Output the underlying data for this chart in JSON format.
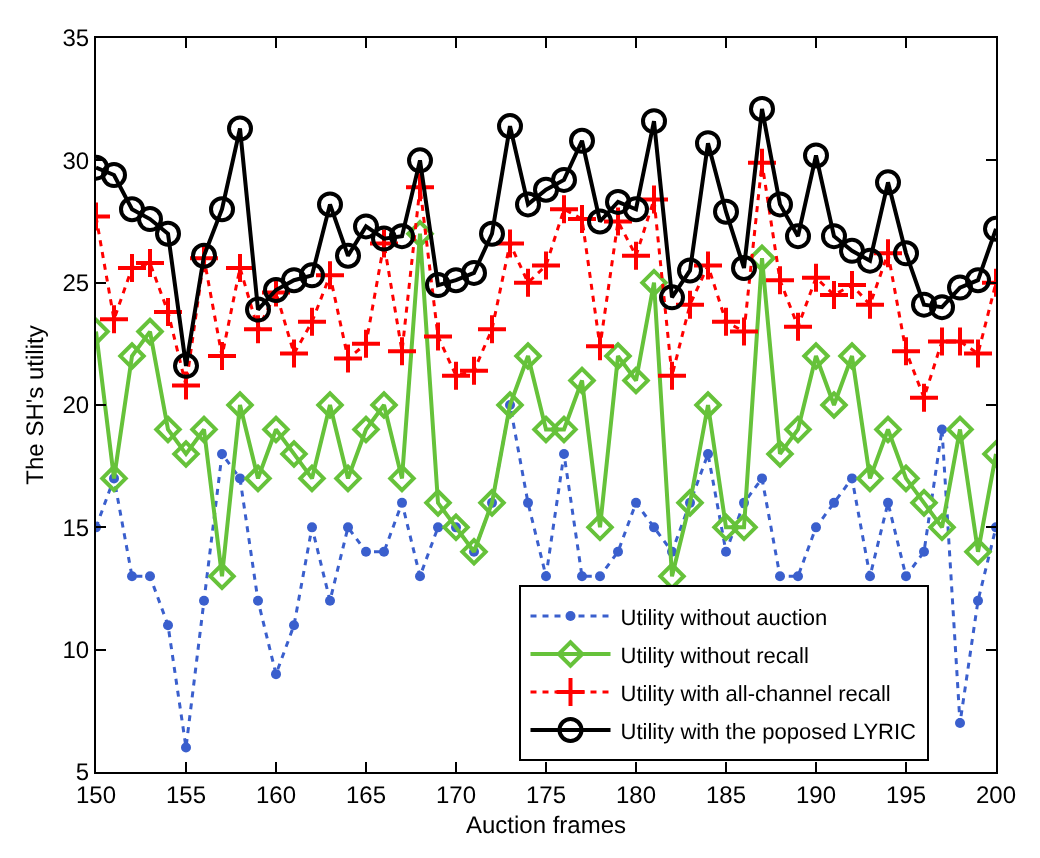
{
  "chart_data": {
    "type": "line",
    "xlabel": "Auction frames",
    "ylabel": "The SH's utility",
    "x": [
      150,
      151,
      152,
      153,
      154,
      155,
      156,
      157,
      158,
      159,
      160,
      161,
      162,
      163,
      164,
      165,
      166,
      167,
      168,
      169,
      170,
      171,
      172,
      173,
      174,
      175,
      176,
      177,
      178,
      179,
      180,
      181,
      182,
      183,
      184,
      185,
      186,
      187,
      188,
      189,
      190,
      191,
      192,
      193,
      194,
      195,
      196,
      197,
      198,
      199,
      200
    ],
    "xlim": [
      150,
      200
    ],
    "xticks": [
      150,
      155,
      160,
      165,
      170,
      175,
      180,
      185,
      190,
      195,
      200
    ],
    "ylim": [
      5,
      35
    ],
    "yticks": [
      5,
      10,
      15,
      20,
      25,
      30,
      35
    ],
    "grid": false,
    "legend": "bottom right",
    "series": [
      {
        "name": "Utility without auction",
        "color": "#3a5fcd",
        "marker": "circle",
        "line_style": "dotted",
        "values": [
          15,
          17,
          13,
          13,
          11,
          6,
          12,
          18,
          17,
          12,
          9,
          11,
          15,
          12,
          15,
          14,
          14,
          16,
          13,
          15,
          15,
          14,
          16,
          20,
          16,
          13,
          18,
          13,
          13,
          14,
          16,
          15,
          14,
          16,
          18,
          14,
          16,
          17,
          13,
          13,
          15,
          16,
          17,
          13,
          16,
          13,
          14,
          19,
          7,
          12,
          15
        ]
      },
      {
        "name": "Utility without recall",
        "color": "#66c23a",
        "marker": "diamond",
        "line_style": "solid",
        "values": [
          23,
          17,
          22,
          23,
          19,
          18,
          19,
          13,
          20,
          17,
          19,
          18,
          17,
          20,
          17,
          19,
          20,
          17,
          27,
          16,
          15,
          14,
          16,
          20,
          22,
          19,
          19,
          21,
          15,
          22,
          21,
          25,
          13,
          16,
          20,
          15,
          15,
          26,
          18,
          19,
          22,
          20,
          22,
          17,
          19,
          17,
          16,
          15,
          19,
          14,
          18
        ]
      },
      {
        "name": "Utility with all-channel recall",
        "color": "#ff0000",
        "marker": "cross",
        "line_style": "dotted",
        "values": [
          27.7,
          23.5,
          25.6,
          25.8,
          23.8,
          20.8,
          26.0,
          22.0,
          25.6,
          23.1,
          24.6,
          22.1,
          23.4,
          25.3,
          21.9,
          22.5,
          26.6,
          22.2,
          28.9,
          22.8,
          21.2,
          21.4,
          23.1,
          26.6,
          25.0,
          25.7,
          28.0,
          27.6,
          22.4,
          27.5,
          26.1,
          28.4,
          21.2,
          24.1,
          25.7,
          23.4,
          23.0,
          29.9,
          25.1,
          23.2,
          25.2,
          24.5,
          24.9,
          24.1,
          26.2,
          22.2,
          20.3,
          22.6,
          22.6,
          22.1,
          25.0
        ]
      },
      {
        "name": "Utility with the poposed LYRIC",
        "color": "#000000",
        "marker": "circle-open",
        "line_style": "solid",
        "values": [
          29.7,
          29.4,
          28.0,
          27.6,
          27.0,
          21.6,
          26.1,
          28.0,
          31.3,
          23.9,
          24.7,
          25.1,
          25.3,
          28.2,
          26.1,
          27.3,
          26.8,
          26.9,
          30.0,
          24.9,
          25.1,
          25.4,
          27.0,
          31.4,
          28.2,
          28.8,
          29.2,
          30.8,
          27.5,
          28.3,
          28.0,
          31.6,
          24.4,
          25.5,
          30.7,
          27.9,
          25.6,
          32.1,
          28.2,
          26.9,
          30.2,
          26.9,
          26.3,
          25.9,
          29.1,
          26.2,
          24.1,
          24.0,
          24.8,
          25.1,
          27.2
        ]
      }
    ]
  }
}
